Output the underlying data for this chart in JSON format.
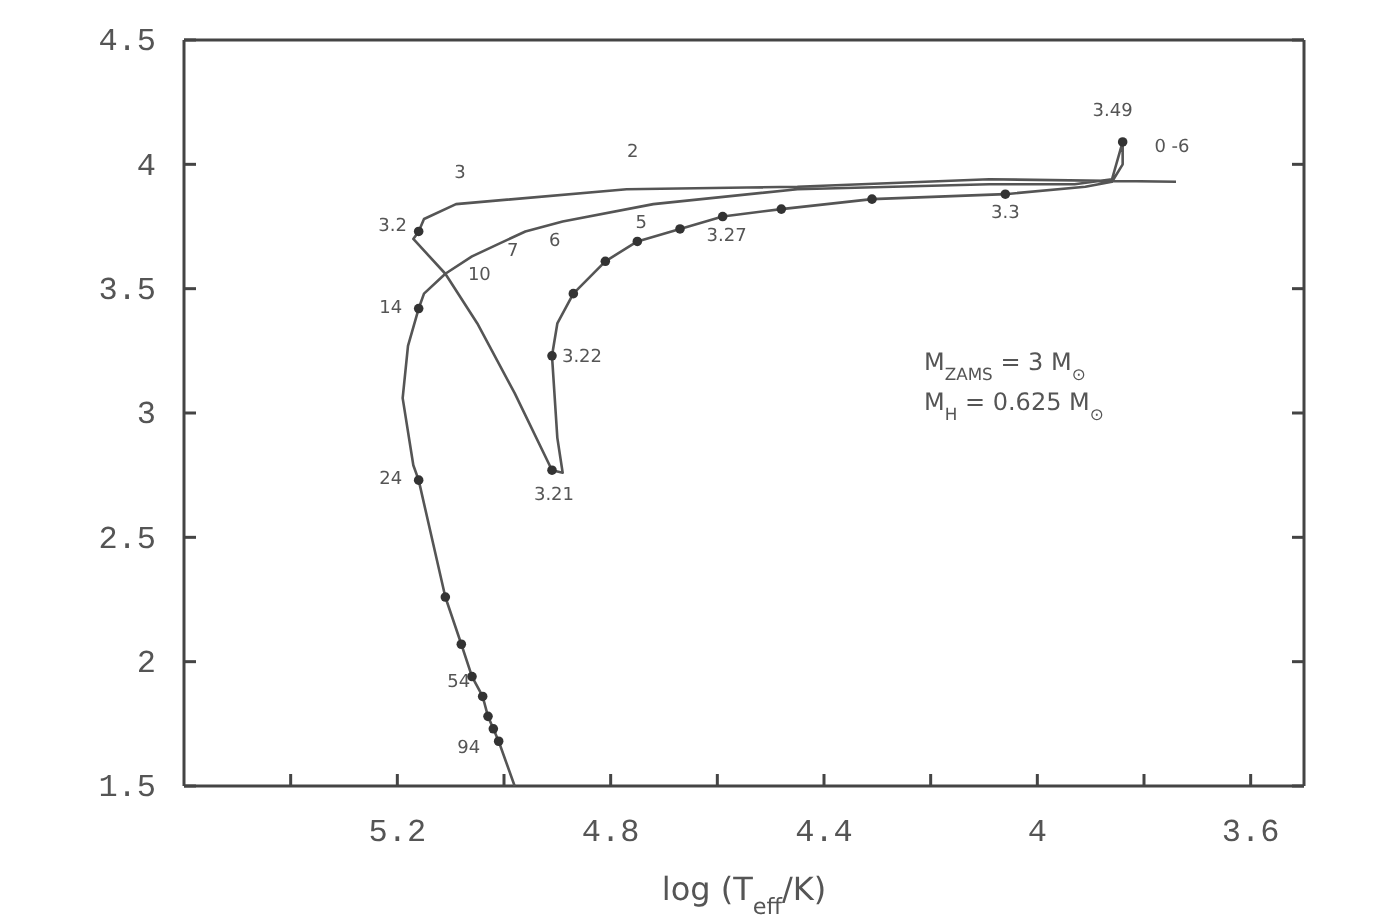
{
  "chart_data": {
    "type": "line",
    "xlabel": "log (T$_{eff}$/K)",
    "xlim": [
      5.6,
      3.5
    ],
    "ylim": [
      1.5,
      4.5
    ],
    "xticks": [
      {
        "value": 5.4,
        "label": null
      },
      5.2,
      {
        "value": 5.0,
        "label": null
      },
      4.8,
      {
        "value": 4.6,
        "label": null
      },
      4.4,
      {
        "value": 4.2,
        "label": null
      },
      4,
      {
        "value": 3.8,
        "label": null
      },
      3.6
    ],
    "yticks": [
      1.5,
      2,
      2.5,
      3,
      3.5,
      4,
      4.5
    ],
    "grid": false,
    "series": [
      {
        "color": "#555555",
        "x": [
          3.74,
          4.09,
          4.45,
          4.77,
          5.09,
          5.15,
          5.16,
          5.17,
          5.11,
          5.05,
          4.98,
          4.91,
          4.89,
          4.9,
          4.91,
          4.9,
          4.87,
          4.81,
          4.75,
          4.67,
          4.59,
          4.48,
          4.31,
          4.06,
          3.91,
          3.86,
          3.84,
          3.84,
          3.86,
          3.93,
          4.09,
          4.45,
          4.72,
          4.89,
          4.96,
          5.01,
          5.06,
          5.11,
          5.15,
          5.16,
          5.18,
          5.19,
          5.17,
          5.16,
          5.11,
          5.08,
          5.06,
          5.04,
          5.03,
          5.02,
          5.01,
          4.98
        ],
        "values": [
          3.93,
          3.94,
          3.91,
          3.9,
          3.84,
          3.78,
          3.73,
          3.7,
          3.56,
          3.36,
          3.08,
          2.77,
          2.76,
          2.9,
          3.23,
          3.36,
          3.48,
          3.61,
          3.69,
          3.74,
          3.79,
          3.82,
          3.86,
          3.88,
          3.91,
          3.93,
          4.0,
          4.09,
          3.94,
          3.92,
          3.92,
          3.9,
          3.84,
          3.77,
          3.73,
          3.68,
          3.63,
          3.56,
          3.48,
          3.42,
          3.27,
          3.06,
          2.79,
          2.73,
          2.26,
          2.07,
          1.94,
          1.86,
          1.78,
          1.73,
          1.68,
          1.5
        ]
      },
      {
        "type": "scatter",
        "color": "#333333",
        "marker": "circle",
        "x": [
          5.16,
          4.91,
          4.91,
          4.87,
          4.81,
          4.75,
          4.67,
          4.59,
          4.48,
          4.31,
          4.06,
          3.84,
          5.16,
          5.16,
          5.11,
          5.08,
          5.06,
          5.04,
          5.03,
          5.02,
          5.01
        ],
        "values": [
          3.73,
          2.77,
          3.23,
          3.48,
          3.61,
          3.69,
          3.74,
          3.79,
          3.82,
          3.86,
          3.88,
          4.09,
          3.42,
          2.73,
          2.26,
          2.07,
          1.94,
          1.86,
          1.78,
          1.73,
          1.68
        ]
      }
    ],
    "annotations": [
      {
        "text": "3.49",
        "x": 3.84,
        "y": 4.09
      },
      {
        "text": "0  -6",
        "x": 3.74,
        "y": 3.93
      },
      {
        "text": "3.3",
        "x": 4.06,
        "y": 3.88
      },
      {
        "text": "3.27",
        "x": 4.59,
        "y": 3.79
      },
      {
        "text": "2",
        "x": 4.77,
        "y": 3.9
      },
      {
        "text": "3",
        "x": 5.09,
        "y": 3.84
      },
      {
        "text": "3.2",
        "x": 5.16,
        "y": 3.73
      },
      {
        "text": "5",
        "x": 4.72,
        "y": 3.84
      },
      {
        "text": "6",
        "x": 4.89,
        "y": 3.77
      },
      {
        "text": "7",
        "x": 5.01,
        "y": 3.68
      },
      {
        "text": "10",
        "x": 5.11,
        "y": 3.56
      },
      {
        "text": "14",
        "x": 5.16,
        "y": 3.42
      },
      {
        "text": "3.22",
        "x": 4.91,
        "y": 3.23
      },
      {
        "text": "3.21",
        "x": 4.91,
        "y": 2.77
      },
      {
        "text": "24",
        "x": 5.16,
        "y": 2.73
      },
      {
        "text": "54",
        "x": 5.04,
        "y": 1.94
      },
      {
        "text": "94",
        "x": 5.01,
        "y": 1.68
      },
      "M$_{ZAMS}$ = 3 M$_{⊙}$",
      "M$_{H}$ = 0.625 M$_{⊙}$"
    ]
  }
}
